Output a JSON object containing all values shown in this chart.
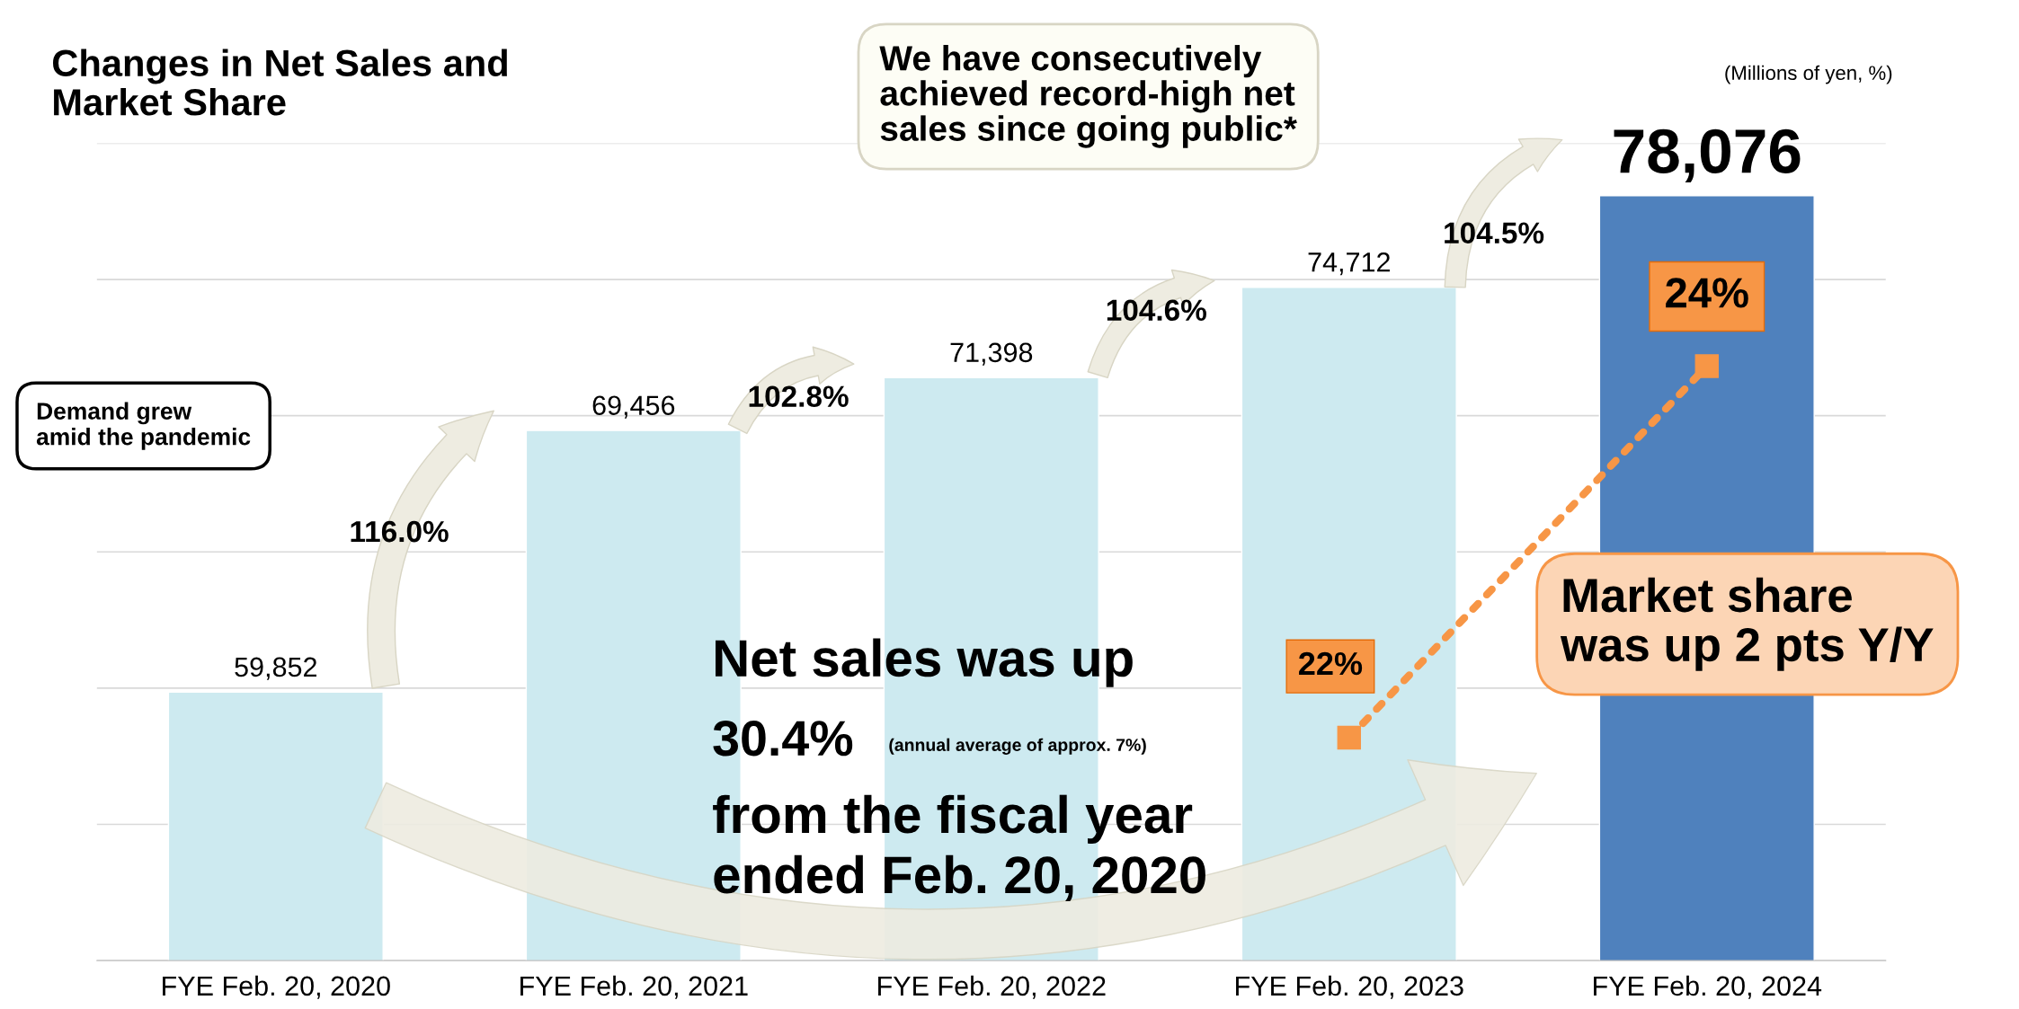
{
  "chart_data": {
    "type": "bar",
    "title": "Changes in Net Sales and\nMarket Share",
    "categories": [
      "FYE Feb. 20, 2020",
      "FYE Feb. 20, 2021",
      "FYE Feb. 20, 2022",
      "FYE Feb. 20, 2023",
      "FYE Feb. 20, 2024"
    ],
    "series": [
      {
        "values": [
          59852,
          69456,
          71398,
          74712,
          78076
        ],
        "colors": [
          "#cdeaf0",
          "#cdeaf0",
          "#cdeaf0",
          "#cdeaf0",
          "#4f81bd"
        ],
        "value_labels": [
          "59,852",
          "69,456",
          "71,398",
          "74,712",
          "78,076"
        ]
      },
      {
        "type": "line",
        "axis": "y2",
        "color": "#f79646",
        "values": [
          null,
          null,
          null,
          22,
          24
        ],
        "value_labels": [
          null,
          null,
          null,
          "22%",
          "24%"
        ],
        "marker": "square",
        "line_style": "dotted"
      }
    ],
    "ylim": [
      50000,
      80000
    ],
    "yticks": [
      {
        "value": 50000,
        "label": null
      },
      {
        "value": 55000,
        "label": null
      },
      {
        "value": 60000,
        "label": null
      },
      {
        "value": 65000,
        "label": null
      },
      {
        "value": 70000,
        "label": null
      },
      {
        "value": 75000,
        "label": null
      },
      {
        "value": 80000,
        "label": null
      }
    ],
    "tick_labels": "x",
    "grid": "y",
    "legend": false,
    "annotations": [
      "(Millions of yen, %)",
      "Demand grew\namid the pandemic",
      "116.0%",
      "102.8%",
      "104.6%",
      "104.5%",
      "We have consecutively\nachieved record-high net\nsales since going public*",
      "Market share\nwas up 2 pts Y/Y",
      "Net sales was up",
      "30.4%",
      "(annual average of approx. 7%)",
      "from the fiscal year\nended Feb. 20, 2020"
    ]
  }
}
